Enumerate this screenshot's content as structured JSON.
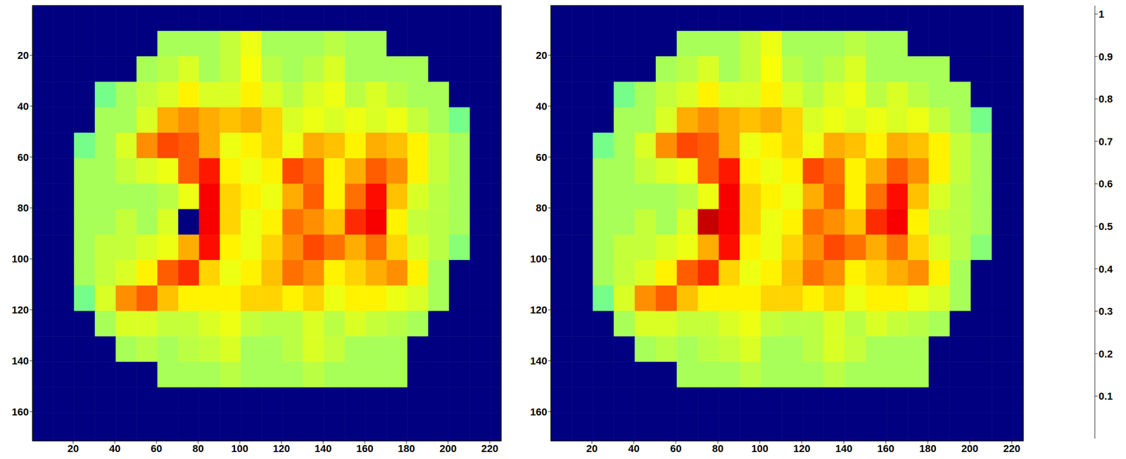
{
  "chart_data": [
    {
      "type": "heatmap",
      "x_edges": [
        0.5,
        10.5,
        20.5,
        30.5,
        40.5,
        50.5,
        60.5,
        70.5,
        80.5,
        90.5,
        100.5,
        110.5,
        120.5,
        130.5,
        140.5,
        150.5,
        160.5,
        170.5,
        180.5,
        190.5,
        200.5,
        210.5,
        220.5,
        225.5
      ],
      "y_edges": [
        0.5,
        10.5,
        20.5,
        30.5,
        40.5,
        50.5,
        60.5,
        70.5,
        80.5,
        90.5,
        100.5,
        110.5,
        120.5,
        130.5,
        140.5,
        150.5,
        160.5,
        170.5,
        171.5
      ],
      "cells": [
        [
          0,
          0,
          0,
          0,
          0,
          0,
          0,
          0,
          0,
          0,
          0,
          0,
          0,
          0,
          0,
          0,
          0,
          0,
          0,
          0,
          0,
          0,
          0
        ],
        [
          0,
          0,
          0,
          0,
          0,
          0,
          0.55,
          0.55,
          0.55,
          0.58,
          0.62,
          0.55,
          0.55,
          0.55,
          0.57,
          0.55,
          0.55,
          0,
          0,
          0,
          0,
          0,
          0
        ],
        [
          0,
          0,
          0,
          0,
          0,
          0.55,
          0.57,
          0.6,
          0.55,
          0.58,
          0.63,
          0.57,
          0.55,
          0.57,
          0.6,
          0.55,
          0.55,
          0.55,
          0.55,
          0,
          0,
          0,
          0
        ],
        [
          0,
          0,
          0,
          0.5,
          0.55,
          0.58,
          0.6,
          0.65,
          0.6,
          0.6,
          0.65,
          0.6,
          0.57,
          0.6,
          0.62,
          0.57,
          0.6,
          0.57,
          0.55,
          0.55,
          0,
          0,
          0
        ],
        [
          0,
          0,
          0,
          0.55,
          0.55,
          0.6,
          0.72,
          0.75,
          0.72,
          0.7,
          0.72,
          0.68,
          0.6,
          0.62,
          0.6,
          0.62,
          0.6,
          0.62,
          0.58,
          0.55,
          0.5,
          0,
          0
        ],
        [
          0,
          0,
          0.5,
          0.55,
          0.6,
          0.75,
          0.82,
          0.8,
          0.72,
          0.62,
          0.65,
          0.68,
          0.62,
          0.72,
          0.7,
          0.65,
          0.72,
          0.7,
          0.65,
          0.58,
          0.55,
          0,
          0
        ],
        [
          0,
          0,
          0.55,
          0.55,
          0.58,
          0.6,
          0.62,
          0.8,
          0.87,
          0.65,
          0.62,
          0.65,
          0.82,
          0.78,
          0.65,
          0.72,
          0.8,
          0.75,
          0.65,
          0.58,
          0.55,
          0,
          0
        ],
        [
          0,
          0,
          0.55,
          0.55,
          0.55,
          0.55,
          0.57,
          0.62,
          0.9,
          0.68,
          0.65,
          0.62,
          0.72,
          0.8,
          0.65,
          0.78,
          0.88,
          0.7,
          0.6,
          0.57,
          0.55,
          0,
          0
        ],
        [
          0,
          0,
          0.55,
          0.55,
          0.58,
          0.55,
          0.6,
          0,
          0.9,
          0.68,
          0.62,
          0.65,
          0.78,
          0.75,
          0.7,
          0.85,
          0.9,
          0.65,
          0.58,
          0.57,
          0.55,
          0,
          0
        ],
        [
          0,
          0,
          0.55,
          0.58,
          0.58,
          0.6,
          0.62,
          0.72,
          0.88,
          0.65,
          0.62,
          0.68,
          0.75,
          0.82,
          0.78,
          0.72,
          0.78,
          0.68,
          0.6,
          0.57,
          0.52,
          0,
          0
        ],
        [
          0,
          0,
          0.55,
          0.58,
          0.6,
          0.65,
          0.8,
          0.85,
          0.68,
          0.62,
          0.65,
          0.7,
          0.78,
          0.75,
          0.65,
          0.68,
          0.72,
          0.75,
          0.65,
          0.55,
          0,
          0,
          0
        ],
        [
          0,
          0,
          0.5,
          0.6,
          0.75,
          0.8,
          0.7,
          0.65,
          0.65,
          0.65,
          0.68,
          0.68,
          0.65,
          0.68,
          0.62,
          0.65,
          0.65,
          0.62,
          0.6,
          0.55,
          0,
          0,
          0
        ],
        [
          0,
          0,
          0,
          0.55,
          0.6,
          0.6,
          0.58,
          0.58,
          0.6,
          0.62,
          0.58,
          0.57,
          0.57,
          0.6,
          0.57,
          0.6,
          0.58,
          0.57,
          0.55,
          0,
          0,
          0,
          0
        ],
        [
          0,
          0,
          0,
          0,
          0.55,
          0.57,
          0.55,
          0.57,
          0.58,
          0.6,
          0.55,
          0.55,
          0.57,
          0.6,
          0.58,
          0.55,
          0.55,
          0.55,
          0,
          0,
          0,
          0,
          0
        ],
        [
          0,
          0,
          0,
          0,
          0,
          0,
          0.55,
          0.55,
          0.55,
          0.57,
          0.55,
          0.55,
          0.55,
          0.57,
          0.55,
          0.55,
          0.55,
          0.55,
          0,
          0,
          0,
          0,
          0
        ],
        [
          0,
          0,
          0,
          0,
          0,
          0,
          0,
          0,
          0,
          0,
          0,
          0,
          0,
          0,
          0,
          0,
          0,
          0,
          0,
          0,
          0,
          0,
          0
        ],
        [
          0,
          0,
          0,
          0,
          0,
          0,
          0,
          0,
          0,
          0,
          0,
          0,
          0,
          0,
          0,
          0,
          0,
          0,
          0,
          0,
          0,
          0,
          0
        ],
        [
          0,
          0,
          0,
          0,
          0,
          0,
          0,
          0,
          0,
          0,
          0,
          0,
          0,
          0,
          0,
          0,
          0,
          0,
          0,
          0,
          0,
          0,
          0
        ]
      ],
      "xlim": [
        0.5,
        225.5
      ],
      "ylim": [
        0.5,
        171.5
      ],
      "xticks": [
        20,
        40,
        60,
        80,
        100,
        120,
        140,
        160,
        180,
        200,
        220
      ],
      "yticks": [
        20,
        40,
        60,
        80,
        100,
        120,
        140,
        160
      ],
      "clim": [
        0,
        1.02
      ]
    },
    {
      "type": "heatmap",
      "x_edges": [
        0.5,
        10.5,
        20.5,
        30.5,
        40.5,
        50.5,
        60.5,
        70.5,
        80.5,
        90.5,
        100.5,
        110.5,
        120.5,
        130.5,
        140.5,
        150.5,
        160.5,
        170.5,
        180.5,
        190.5,
        200.5,
        210.5,
        220.5,
        225.5
      ],
      "y_edges": [
        0.5,
        10.5,
        20.5,
        30.5,
        40.5,
        50.5,
        60.5,
        70.5,
        80.5,
        90.5,
        100.5,
        110.5,
        120.5,
        130.5,
        140.5,
        150.5,
        160.5,
        170.5,
        171.5
      ],
      "cells": [
        [
          0,
          0,
          0,
          0,
          0,
          0,
          0,
          0,
          0,
          0,
          0,
          0,
          0,
          0,
          0,
          0,
          0,
          0,
          0,
          0,
          0,
          0,
          0
        ],
        [
          0,
          0,
          0,
          0,
          0,
          0,
          0.55,
          0.55,
          0.55,
          0.58,
          0.62,
          0.55,
          0.55,
          0.55,
          0.57,
          0.55,
          0.55,
          0,
          0,
          0,
          0,
          0,
          0
        ],
        [
          0,
          0,
          0,
          0,
          0,
          0.55,
          0.57,
          0.6,
          0.55,
          0.58,
          0.63,
          0.57,
          0.55,
          0.57,
          0.6,
          0.55,
          0.55,
          0.55,
          0.55,
          0,
          0,
          0,
          0
        ],
        [
          0,
          0,
          0,
          0.5,
          0.55,
          0.58,
          0.6,
          0.65,
          0.6,
          0.6,
          0.65,
          0.6,
          0.57,
          0.6,
          0.62,
          0.57,
          0.6,
          0.57,
          0.55,
          0.55,
          0,
          0,
          0
        ],
        [
          0,
          0,
          0,
          0.55,
          0.55,
          0.6,
          0.72,
          0.75,
          0.72,
          0.7,
          0.72,
          0.68,
          0.6,
          0.62,
          0.6,
          0.62,
          0.6,
          0.62,
          0.58,
          0.55,
          0.5,
          0,
          0
        ],
        [
          0,
          0,
          0.5,
          0.55,
          0.6,
          0.75,
          0.82,
          0.8,
          0.72,
          0.62,
          0.65,
          0.68,
          0.62,
          0.72,
          0.7,
          0.65,
          0.72,
          0.7,
          0.65,
          0.58,
          0.55,
          0,
          0
        ],
        [
          0,
          0,
          0.55,
          0.55,
          0.58,
          0.6,
          0.62,
          0.8,
          0.87,
          0.65,
          0.62,
          0.65,
          0.82,
          0.78,
          0.65,
          0.72,
          0.8,
          0.75,
          0.65,
          0.58,
          0.55,
          0,
          0
        ],
        [
          0,
          0,
          0.55,
          0.55,
          0.55,
          0.55,
          0.57,
          0.62,
          0.9,
          0.68,
          0.65,
          0.62,
          0.72,
          0.8,
          0.65,
          0.78,
          0.88,
          0.7,
          0.6,
          0.57,
          0.55,
          0,
          0
        ],
        [
          0,
          0,
          0.55,
          0.55,
          0.58,
          0.55,
          0.6,
          0.95,
          0.9,
          0.68,
          0.62,
          0.65,
          0.78,
          0.75,
          0.7,
          0.85,
          0.9,
          0.65,
          0.58,
          0.57,
          0.55,
          0,
          0
        ],
        [
          0,
          0,
          0.55,
          0.58,
          0.58,
          0.6,
          0.62,
          0.72,
          0.88,
          0.65,
          0.62,
          0.68,
          0.75,
          0.82,
          0.78,
          0.72,
          0.78,
          0.68,
          0.6,
          0.57,
          0.52,
          0,
          0
        ],
        [
          0,
          0,
          0.55,
          0.58,
          0.6,
          0.65,
          0.8,
          0.85,
          0.68,
          0.62,
          0.65,
          0.7,
          0.78,
          0.75,
          0.65,
          0.68,
          0.72,
          0.75,
          0.65,
          0.55,
          0,
          0,
          0
        ],
        [
          0,
          0,
          0.5,
          0.6,
          0.75,
          0.8,
          0.7,
          0.65,
          0.65,
          0.65,
          0.68,
          0.68,
          0.65,
          0.68,
          0.62,
          0.65,
          0.65,
          0.62,
          0.6,
          0.55,
          0,
          0,
          0
        ],
        [
          0,
          0,
          0,
          0.55,
          0.6,
          0.6,
          0.58,
          0.58,
          0.6,
          0.62,
          0.58,
          0.57,
          0.57,
          0.6,
          0.57,
          0.6,
          0.58,
          0.57,
          0.55,
          0,
          0,
          0,
          0
        ],
        [
          0,
          0,
          0,
          0,
          0.55,
          0.57,
          0.55,
          0.57,
          0.58,
          0.6,
          0.55,
          0.55,
          0.57,
          0.6,
          0.58,
          0.55,
          0.55,
          0.55,
          0,
          0,
          0,
          0,
          0
        ],
        [
          0,
          0,
          0,
          0,
          0,
          0,
          0.55,
          0.55,
          0.55,
          0.57,
          0.55,
          0.55,
          0.55,
          0.57,
          0.55,
          0.55,
          0.55,
          0.55,
          0,
          0,
          0,
          0,
          0
        ],
        [
          0,
          0,
          0,
          0,
          0,
          0,
          0,
          0,
          0,
          0,
          0,
          0,
          0,
          0,
          0,
          0,
          0,
          0,
          0,
          0,
          0,
          0,
          0
        ],
        [
          0,
          0,
          0,
          0,
          0,
          0,
          0,
          0,
          0,
          0,
          0,
          0,
          0,
          0,
          0,
          0,
          0,
          0,
          0,
          0,
          0,
          0,
          0
        ],
        [
          0,
          0,
          0,
          0,
          0,
          0,
          0,
          0,
          0,
          0,
          0,
          0,
          0,
          0,
          0,
          0,
          0,
          0,
          0,
          0,
          0,
          0,
          0
        ]
      ],
      "xlim": [
        0.5,
        225.5
      ],
      "ylim": [
        0.5,
        171.5
      ],
      "xticks": [
        20,
        40,
        60,
        80,
        100,
        120,
        140,
        160,
        180,
        200,
        220
      ],
      "yticks": [
        20,
        40,
        60,
        80,
        100,
        120,
        140,
        160
      ],
      "clim": [
        0,
        1.02
      ],
      "cticks": [
        0.1,
        0.2,
        0.3,
        0.4,
        0.5,
        0.6,
        0.7,
        0.8,
        0.9,
        1
      ]
    }
  ]
}
